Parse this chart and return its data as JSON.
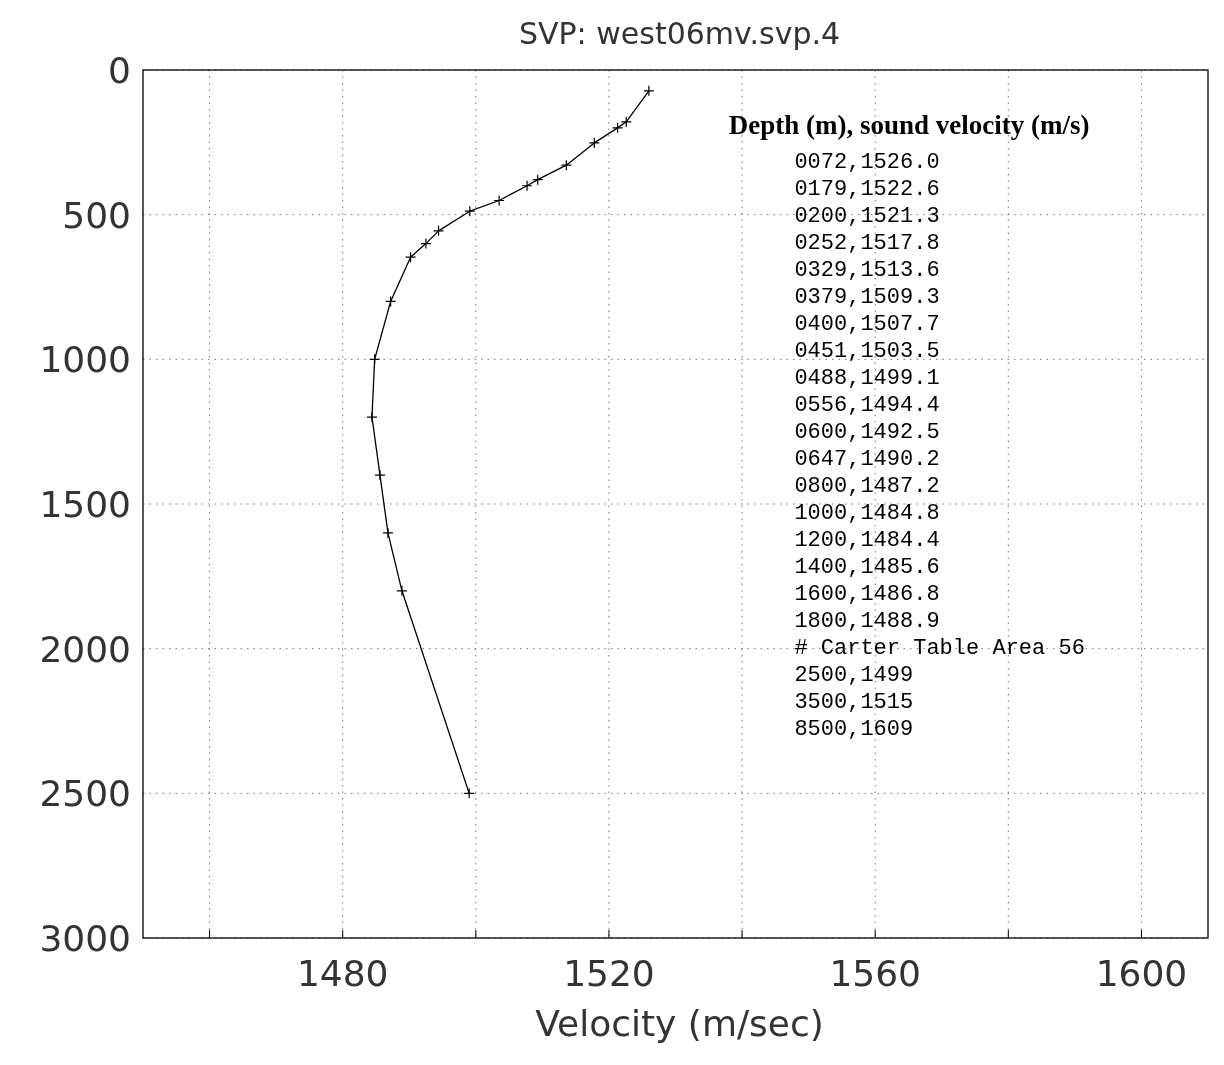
{
  "chart_data": {
    "type": "line",
    "title": "SVP: west06mv.svp.4",
    "xlabel": "Velocity (m/sec)",
    "xlim": [
      1450,
      1610
    ],
    "ylim": [
      3000,
      0
    ],
    "xticks": [
      {
        "value": 1460,
        "label": null
      },
      1480,
      {
        "value": 1500,
        "label": null
      },
      1520,
      {
        "value": 1540,
        "label": null
      },
      1560,
      {
        "value": 1580,
        "label": null
      },
      1600
    ],
    "yticks": [
      0,
      500,
      1000,
      1500,
      2000,
      2500,
      3000
    ],
    "grid": true,
    "marker": "cross",
    "line_style": "solid",
    "series": [
      {
        "color": "#000000",
        "x": [
          1526.0,
          1522.6,
          1521.3,
          1517.8,
          1513.6,
          1509.3,
          1507.7,
          1503.5,
          1499.1,
          1494.4,
          1492.5,
          1490.2,
          1487.2,
          1484.8,
          1484.4,
          1485.6,
          1486.8,
          1488.9,
          1499
        ],
        "values": [
          72,
          179,
          200,
          252,
          329,
          379,
          400,
          451,
          488,
          556,
          600,
          647,
          800,
          1000,
          1200,
          1400,
          1600,
          1800,
          2500
        ]
      }
    ],
    "annotations": [
      "Depth (m), sound velocity (m/s)",
      "0072,1526.0",
      "0179,1522.6",
      "0200,1521.3",
      "0252,1517.8",
      "0329,1513.6",
      "0379,1509.3",
      "0400,1507.7",
      "0451,1503.5",
      "0488,1499.1",
      "0556,1494.4",
      "0600,1492.5",
      "0647,1490.2",
      "0800,1487.2",
      "1000,1484.8",
      "1200,1484.4",
      "1400,1485.6",
      "1600,1486.8",
      "1800,1488.9",
      "# Carter Table Area 56",
      "2500,1499",
      "3500,1515",
      "8500,1609"
    ]
  }
}
